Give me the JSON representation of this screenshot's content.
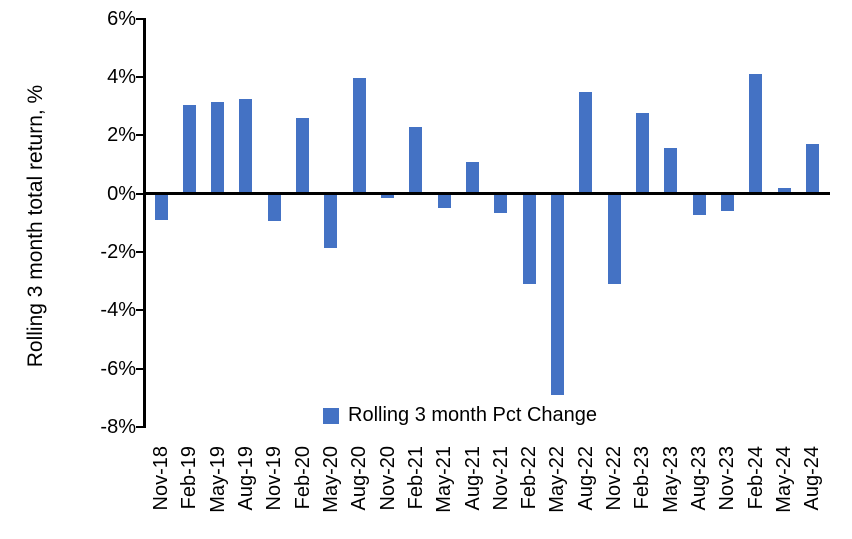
{
  "chart_data": {
    "type": "bar",
    "title": "",
    "xlabel": "",
    "ylabel": "Rolling 3 month total return, %",
    "ylim": [
      -8,
      6
    ],
    "ytick_step": 2,
    "ytick_labels": [
      "6%",
      "4%",
      "2%",
      "0%",
      "-2%",
      "-4%",
      "-6%",
      "-8%"
    ],
    "grid": false,
    "legend_position": "bottom-center",
    "categories": [
      "Nov-18",
      "Feb-19",
      "May-19",
      "Aug-19",
      "Nov-19",
      "Feb-20",
      "May-20",
      "Aug-20",
      "Nov-20",
      "Feb-21",
      "May-21",
      "Aug-21",
      "Nov-21",
      "Feb-22",
      "May-22",
      "Aug-22",
      "Nov-22",
      "Feb-23",
      "May-23",
      "Aug-23",
      "Nov-23",
      "Feb-24",
      "May-24",
      "Aug-24"
    ],
    "series": [
      {
        "name": "Rolling 3 month Pct Change",
        "color": "#4472C4",
        "values": [
          -0.9,
          3.05,
          3.15,
          3.25,
          -0.95,
          2.6,
          -1.85,
          3.95,
          -0.15,
          2.3,
          -0.5,
          1.1,
          -0.65,
          -3.1,
          -6.9,
          3.5,
          -3.1,
          2.75,
          1.55,
          -0.75,
          -0.6,
          4.1,
          0.2,
          1.7
        ]
      }
    ],
    "colors": {
      "bar": "#4472C4",
      "axis": "#000000",
      "text": "#000000",
      "background": "#ffffff"
    }
  }
}
